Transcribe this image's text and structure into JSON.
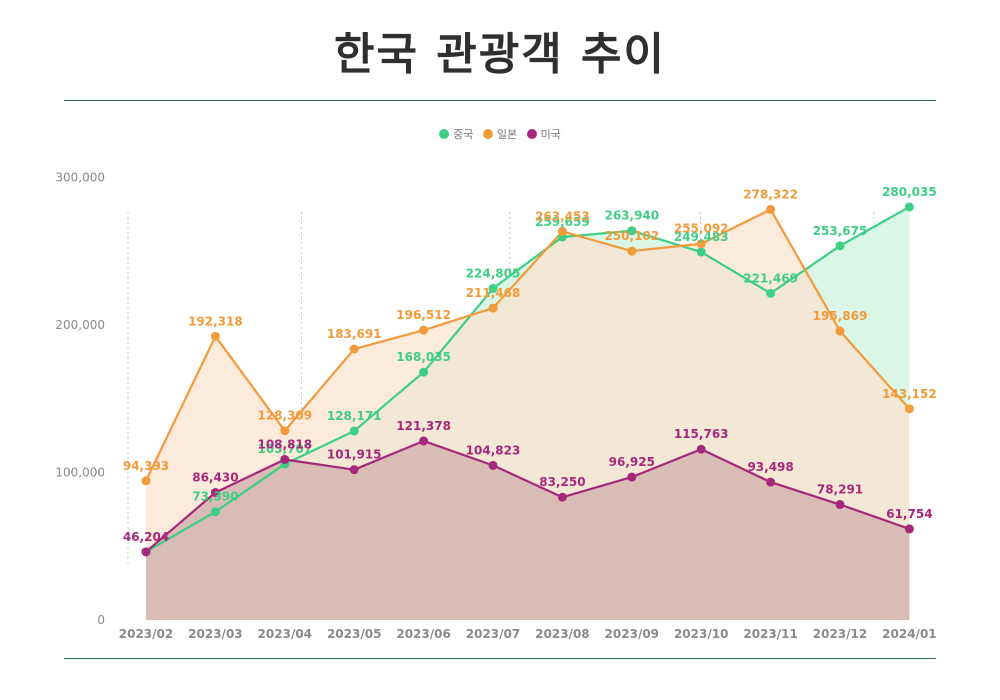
{
  "title": "한국 관광객 추이",
  "chart_data": {
    "type": "area",
    "title": "한국 관광객 추이",
    "categories": [
      "2023/02",
      "2023/03",
      "2023/04",
      "2023/05",
      "2023/06",
      "2023/07",
      "2023/08",
      "2023/09",
      "2023/10",
      "2023/11",
      "2023/12",
      "2024/01"
    ],
    "ylim": [
      0,
      300000
    ],
    "yticks": [
      0,
      100000,
      200000,
      300000
    ],
    "ytick_labels": [
      "0",
      "100,000",
      "200,000",
      "300,000"
    ],
    "legend_position": "top-center",
    "grid": "dotted vertical lines",
    "series": [
      {
        "name": "중국",
        "color": "#3ecf85",
        "fill": "#d4f5e3",
        "values": [
          46204,
          73390,
          105707,
          128171,
          168035,
          224805,
          259659,
          263940,
          249483,
          221469,
          253675,
          280035
        ],
        "labels": [
          "",
          "73,390",
          "105,707",
          "128,171",
          "168,035",
          "224,805",
          "259,659",
          "263,940",
          "249,483",
          "221,469",
          "253,675",
          "280,035"
        ]
      },
      {
        "name": "일본",
        "color": "#f39a3b",
        "fill": "#fbe3cf",
        "values": [
          94393,
          192318,
          128309,
          183691,
          196512,
          211468,
          263453,
          250102,
          255092,
          278322,
          195869,
          143152
        ],
        "labels": [
          "94,393",
          "192,318",
          "128,309",
          "183,691",
          "196,512",
          "211,468",
          "263,453",
          "250,102",
          "255,092",
          "278,322",
          "195,869",
          "143,152"
        ]
      },
      {
        "name": "미국",
        "color": "#a6287a",
        "fill": "#d7b9b3",
        "values": [
          46204,
          86430,
          108818,
          101915,
          121378,
          104823,
          83250,
          96925,
          115763,
          93498,
          78291,
          61754
        ],
        "labels": [
          "46,204",
          "86,430",
          "108,818",
          "101,915",
          "121,378",
          "104,823",
          "83,250",
          "96,925",
          "115,763",
          "93,498",
          "78,291",
          "61,754"
        ]
      }
    ]
  }
}
